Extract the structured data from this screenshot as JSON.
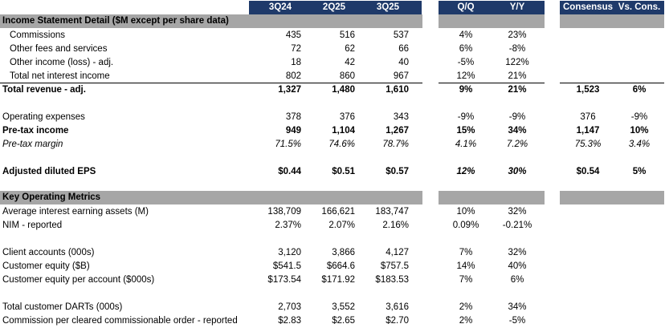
{
  "header": {
    "periods": [
      "3Q24",
      "2Q25",
      "3Q25"
    ],
    "changes": [
      "Q/Q",
      "Y/Y"
    ],
    "consensus": "Consensus",
    "vs_cons": "Vs. Cons."
  },
  "section1": {
    "title": "Income Statement Detail ($M except per share data)"
  },
  "section2": {
    "title": "Key Operating Metrics"
  },
  "rows": {
    "commissions": {
      "label": "Commissions",
      "v": [
        "435",
        "516",
        "537"
      ],
      "c": [
        "4%",
        "23%"
      ]
    },
    "other_fees": {
      "label": "Other fees and services",
      "v": [
        "72",
        "62",
        "66"
      ],
      "c": [
        "6%",
        "-8%"
      ]
    },
    "other_income": {
      "label": "Other income (loss) - adj.",
      "v": [
        "18",
        "42",
        "40"
      ],
      "c": [
        "-5%",
        "122%"
      ]
    },
    "tnii": {
      "label": "Total net interest income",
      "v": [
        "802",
        "860",
        "967"
      ],
      "c": [
        "12%",
        "21%"
      ]
    },
    "total_revenue": {
      "label": "Total revenue - adj.",
      "v": [
        "1,327",
        "1,480",
        "1,610"
      ],
      "c": [
        "9%",
        "21%"
      ],
      "cons": "1,523",
      "vs": "6%"
    },
    "opex": {
      "label": "Operating expenses",
      "v": [
        "378",
        "376",
        "343"
      ],
      "c": [
        "-9%",
        "-9%"
      ],
      "cons": "376",
      "vs": "-9%"
    },
    "pretax": {
      "label": "Pre-tax income",
      "v": [
        "949",
        "1,104",
        "1,267"
      ],
      "c": [
        "15%",
        "34%"
      ],
      "cons": "1,147",
      "vs": "10%"
    },
    "margin": {
      "label": "Pre-tax margin",
      "v": [
        "71.5%",
        "74.6%",
        "78.7%"
      ],
      "c": [
        "4.1%",
        "7.2%"
      ],
      "cons": "75.3%",
      "vs": "3.4%"
    },
    "eps": {
      "label": "Adjusted diluted EPS",
      "v": [
        "$0.44",
        "$0.51",
        "$0.57"
      ],
      "c": [
        "12%",
        "30%"
      ],
      "cons": "$0.54",
      "vs": "5%"
    },
    "aiea": {
      "label": "Average interest earning assets (M)",
      "v": [
        "138,709",
        "166,621",
        "183,747"
      ],
      "c": [
        "10%",
        "32%"
      ]
    },
    "nim": {
      "label": "NIM - reported",
      "v": [
        "2.37%",
        "2.07%",
        "2.16%"
      ],
      "c": [
        "0.09%",
        "-0.21%"
      ]
    },
    "accounts": {
      "label": "Client accounts (000s)",
      "v": [
        "3,120",
        "3,866",
        "4,127"
      ],
      "c": [
        "7%",
        "32%"
      ]
    },
    "equity": {
      "label": "Customer equity ($B)",
      "v": [
        "$541.5",
        "$664.6",
        "$757.5"
      ],
      "c": [
        "14%",
        "40%"
      ]
    },
    "equity_acct": {
      "label": "Customer equity per account ($000s)",
      "v": [
        "$173.54",
        "$171.92",
        "$183.53"
      ],
      "c": [
        "7%",
        "6%"
      ]
    },
    "darts": {
      "label": "Total customer DARTs (000s)",
      "v": [
        "2,703",
        "3,552",
        "3,616"
      ],
      "c": [
        "2%",
        "34%"
      ]
    },
    "commission": {
      "label": "Commission per cleared commissionable order - reported",
      "v": [
        "$2.83",
        "$2.65",
        "$2.70"
      ],
      "c": [
        "2%",
        "-5%"
      ]
    }
  }
}
